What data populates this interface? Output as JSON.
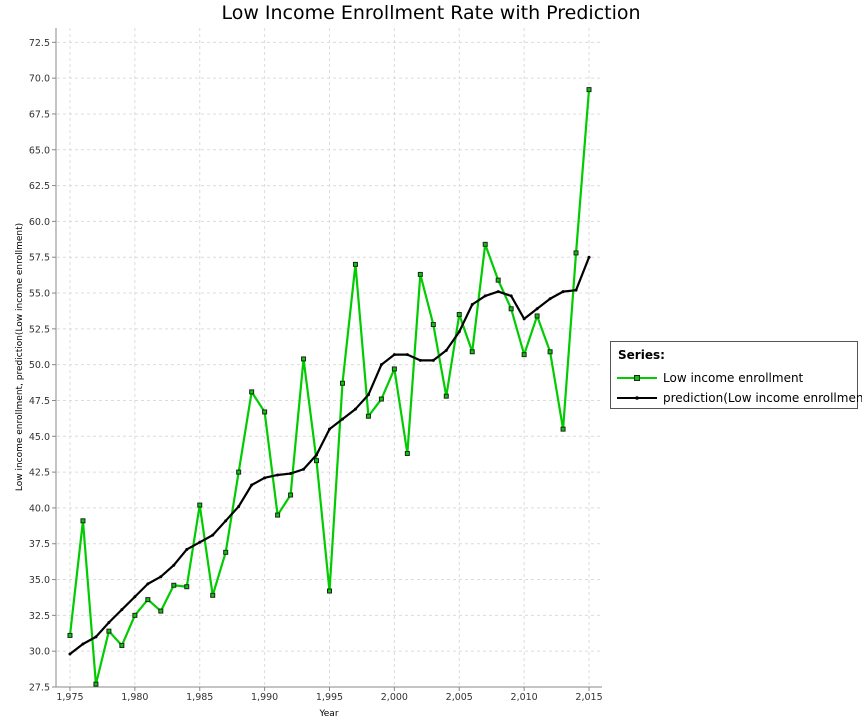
{
  "chart_data": {
    "type": "line",
    "title": "Low Income Enrollment Rate with Prediction",
    "xlabel": "Year",
    "ylabel": "Low income enrollment, prediction(Low income enrollment)",
    "xlim": [
      1974,
      2016
    ],
    "ylim": [
      27.5,
      73.5
    ],
    "xticks": [
      "1,975",
      "1,980",
      "1,985",
      "1,990",
      "1,995",
      "2,000",
      "2,005",
      "2,010",
      "2,015"
    ],
    "yticks": [
      "27.5",
      "30.0",
      "32.5",
      "35.0",
      "37.5",
      "40.0",
      "42.5",
      "45.0",
      "47.5",
      "50.0",
      "52.5",
      "55.0",
      "57.5",
      "60.0",
      "62.5",
      "65.0",
      "67.5",
      "70.0",
      "72.5"
    ],
    "grid": true,
    "legend": {
      "title": "Series:",
      "position": "right"
    },
    "x": [
      1975,
      1976,
      1977,
      1978,
      1979,
      1980,
      1981,
      1982,
      1983,
      1984,
      1985,
      1986,
      1987,
      1988,
      1989,
      1990,
      1991,
      1992,
      1993,
      1994,
      1995,
      1996,
      1997,
      1998,
      1999,
      2000,
      2001,
      2002,
      2003,
      2004,
      2005,
      2006,
      2007,
      2008,
      2009,
      2010,
      2011,
      2012,
      2013,
      2014,
      2015
    ],
    "series": [
      {
        "name": "Low income enrollment",
        "color": "#00cc00",
        "marker": "square",
        "values": [
          31.1,
          39.1,
          27.7,
          31.4,
          30.4,
          32.5,
          33.6,
          32.8,
          34.6,
          34.5,
          40.2,
          33.9,
          36.9,
          42.5,
          48.1,
          46.7,
          39.5,
          40.9,
          50.4,
          43.3,
          34.2,
          48.7,
          57.0,
          46.4,
          47.6,
          49.7,
          43.8,
          56.3,
          52.8,
          47.8,
          53.5,
          50.9,
          58.4,
          55.9,
          53.9,
          50.7,
          53.4,
          50.9,
          45.5,
          57.8,
          69.2
        ]
      },
      {
        "name": "prediction(Low income enrollment)",
        "color": "#000000",
        "marker": "dot",
        "values": [
          29.8,
          30.5,
          31.0,
          32.0,
          32.9,
          33.8,
          34.7,
          35.2,
          36.0,
          37.1,
          37.6,
          38.1,
          39.1,
          40.1,
          41.6,
          42.1,
          42.3,
          42.4,
          42.7,
          43.7,
          45.5,
          46.2,
          46.9,
          47.9,
          50.0,
          50.7,
          50.7,
          50.3,
          50.3,
          51.0,
          52.3,
          54.2,
          54.8,
          55.1,
          54.8,
          53.2,
          53.9,
          54.6,
          55.1,
          55.2,
          57.5
        ]
      }
    ]
  }
}
